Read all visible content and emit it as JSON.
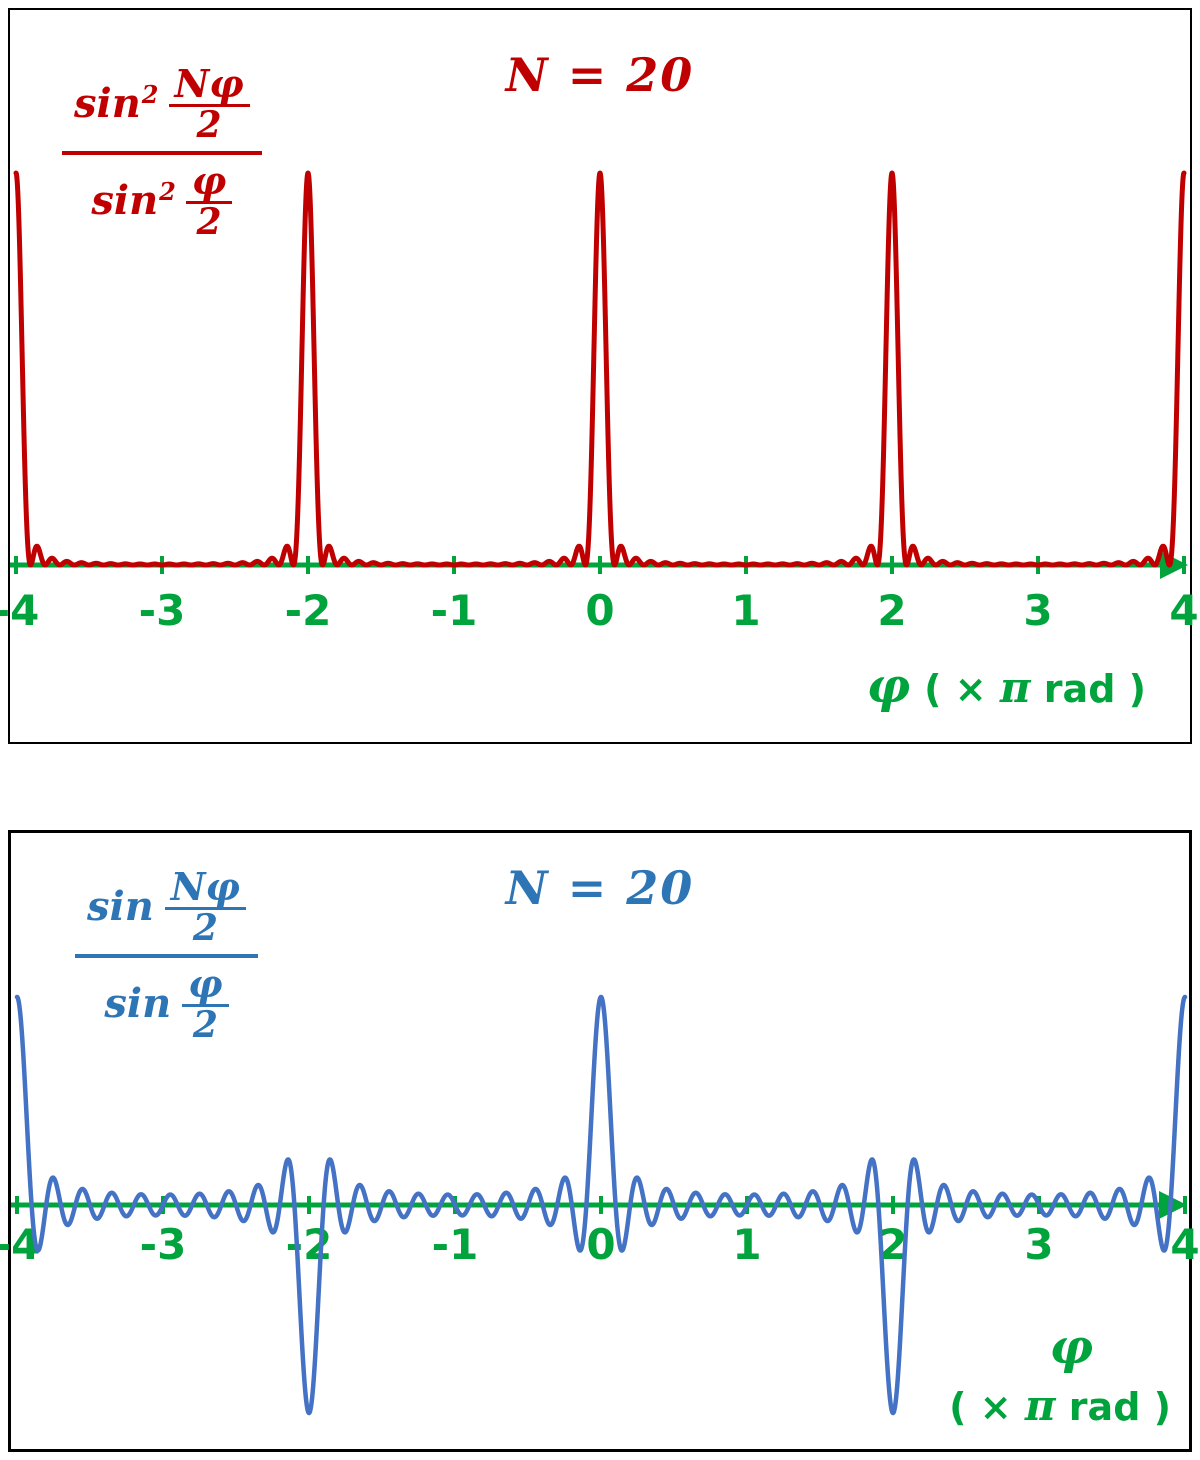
{
  "panels": [
    {
      "title": "N = 20",
      "accent": "#C00000",
      "formula": {
        "fn": "sin",
        "sup": "2",
        "num_top": "Nφ",
        "num_bot": "2",
        "den_fn": "sin",
        "den_sup": "2",
        "den_top": "φ",
        "den_bot": "2"
      },
      "xlabel": {
        "phi": "φ",
        "units_open": "( × ",
        "pi": "π",
        "units_close": "  rad )"
      }
    },
    {
      "title": "N = 20",
      "accent": "#2E75B6",
      "formula": {
        "fn": "sin",
        "sup": "",
        "num_top": "Nφ",
        "num_bot": "2",
        "den_fn": "sin",
        "den_sup": "",
        "den_top": "φ",
        "den_bot": "2"
      },
      "xlabel": {
        "phi": "φ",
        "units_open": "( × ",
        "pi": "π",
        "units_close": "  rad )"
      }
    }
  ],
  "chart_data": [
    {
      "type": "line",
      "name": "grating-intensity",
      "title": "N = 20",
      "formula": "sin^2(N·φ/2) / sin^2(φ/2)",
      "N": 20,
      "x_unit": "π rad",
      "x_range": [
        -4,
        4
      ],
      "x_ticks": [
        -4,
        -3,
        -2,
        -1,
        0,
        1,
        2,
        3,
        4
      ],
      "xlabel": "φ ( × π rad )",
      "y_range": [
        0,
        400
      ],
      "principal_maxima": {
        "positions_pi": [
          -4,
          -2,
          0,
          2,
          4
        ],
        "value": 400
      },
      "secondary_maxima_note": "small side lobes flanking each principal peak, height ~18 (4.5% of 400)",
      "line_color": "#C00000",
      "axis_color": "#00A33C",
      "grid": false,
      "legend": false
    },
    {
      "type": "line",
      "name": "grating-amplitude",
      "title": "N = 20",
      "formula": "sin(N·φ/2) / sin(φ/2)",
      "N": 20,
      "x_unit": "π rad",
      "x_range": [
        -4,
        4
      ],
      "x_ticks": [
        -4,
        -3,
        -2,
        -1,
        0,
        1,
        2,
        3,
        4
      ],
      "xlabel": "φ ( × π rad )",
      "y_range": [
        -20,
        20
      ],
      "extrema": [
        {
          "phi_pi": -4,
          "value": 20
        },
        {
          "phi_pi": -2,
          "value": -20
        },
        {
          "phi_pi": 0,
          "value": 20
        },
        {
          "phi_pi": 2,
          "value": -20
        },
        {
          "phi_pi": 4,
          "value": 20
        }
      ],
      "oscillation_note": "fast ripples of period 0.2π between peaks, envelope 1/|sin(φ/2)|",
      "line_color": "#4472C4",
      "axis_color": "#00A33C",
      "grid": false,
      "legend": false
    }
  ]
}
